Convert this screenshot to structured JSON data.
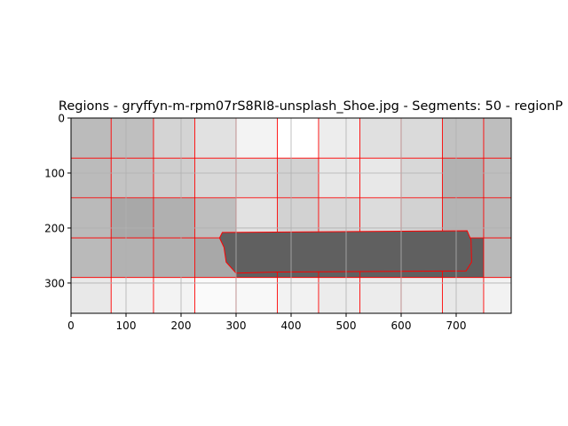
{
  "chart_data": {
    "type": "image-plot",
    "title": "Regions - gryffyn-m-rpm07rS8RI8-unsplash_Shoe.jpg - Segments: 50 - regionP",
    "xlabel": "",
    "ylabel": "",
    "xlim": [
      0,
      800
    ],
    "ylim": [
      355,
      0
    ],
    "x_ticks": [
      0,
      100,
      200,
      300,
      400,
      500,
      600,
      700
    ],
    "y_ticks": [
      0,
      100,
      200,
      300
    ],
    "grid": true,
    "boundary_color": "#ff0000",
    "grid_color": "#b0b0b0",
    "col_edges": [
      0,
      73,
      150,
      225,
      300,
      375,
      450,
      525,
      600,
      675,
      750,
      800
    ],
    "row_edges": [
      0,
      73,
      145,
      218,
      290,
      355
    ],
    "shades": [
      [
        187,
        191,
        212,
        225,
        243,
        255,
        237,
        224,
        218,
        194,
        190
      ],
      [
        187,
        195,
        206,
        216,
        220,
        210,
        231,
        232,
        216,
        178,
        190
      ],
      [
        186,
        168,
        176,
        190,
        226,
        210,
        216,
        220,
        210,
        180,
        185
      ],
      [
        186,
        178,
        176,
        168,
        96,
        96,
        96,
        96,
        96,
        96,
        185
      ],
      [
        232,
        240,
        243,
        250,
        248,
        242,
        236,
        236,
        236,
        232,
        242
      ]
    ],
    "shoe_region": {
      "shade": 96,
      "outline": [
        [
          275,
          208
        ],
        [
          720,
          205
        ],
        [
          727,
          222
        ],
        [
          728,
          262
        ],
        [
          718,
          278
        ],
        [
          375,
          280
        ],
        [
          300,
          282
        ],
        [
          282,
          262
        ],
        [
          278,
          235
        ],
        [
          270,
          218
        ]
      ]
    }
  }
}
